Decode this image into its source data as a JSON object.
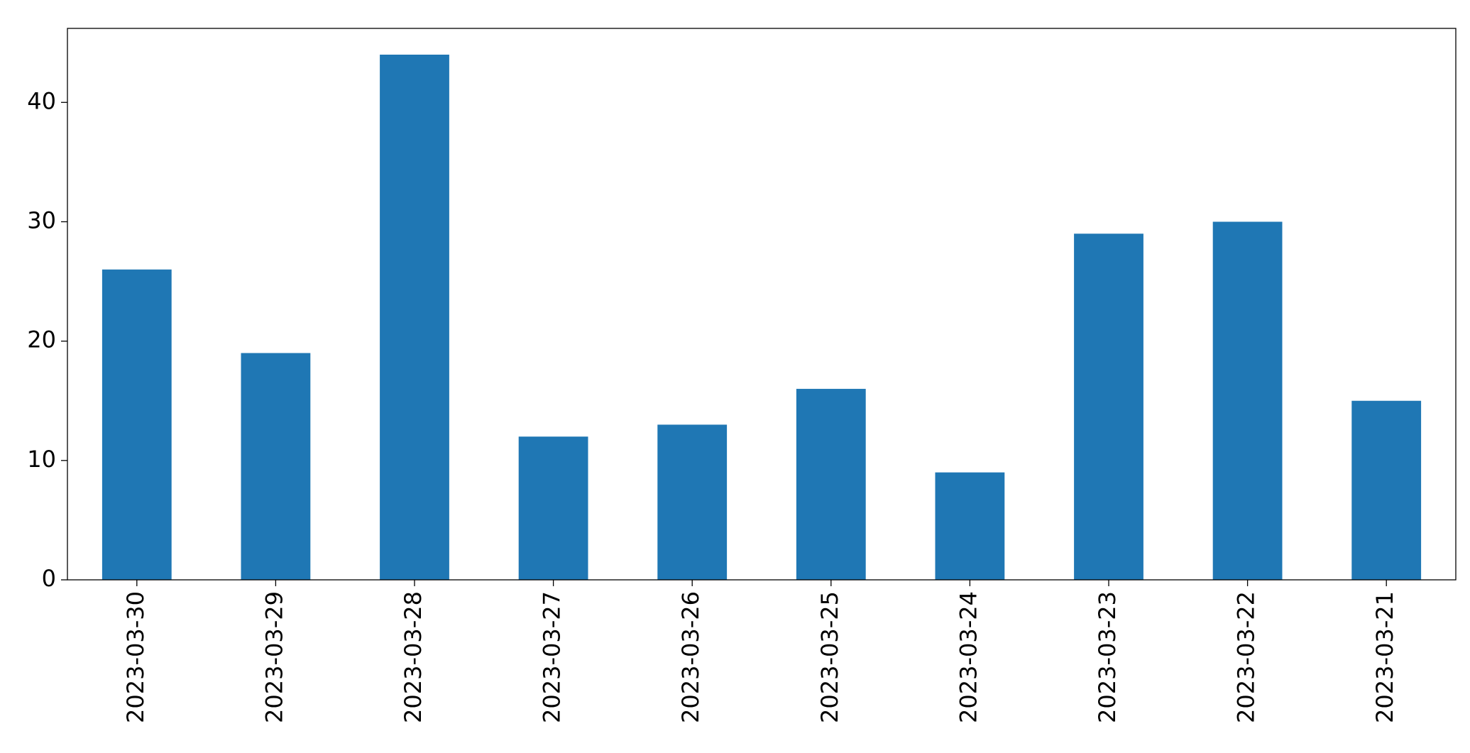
{
  "chart_data": {
    "type": "bar",
    "categories": [
      "2023-03-30",
      "2023-03-29",
      "2023-03-28",
      "2023-03-27",
      "2023-03-26",
      "2023-03-25",
      "2023-03-24",
      "2023-03-23",
      "2023-03-22",
      "2023-03-21"
    ],
    "values": [
      26,
      19,
      44,
      12,
      13,
      16,
      9,
      29,
      30,
      15
    ],
    "color": "#1f77b4",
    "ylim": [
      0,
      46.2
    ],
    "yticks": [
      0,
      10,
      20,
      30,
      40
    ],
    "grid": false
  }
}
